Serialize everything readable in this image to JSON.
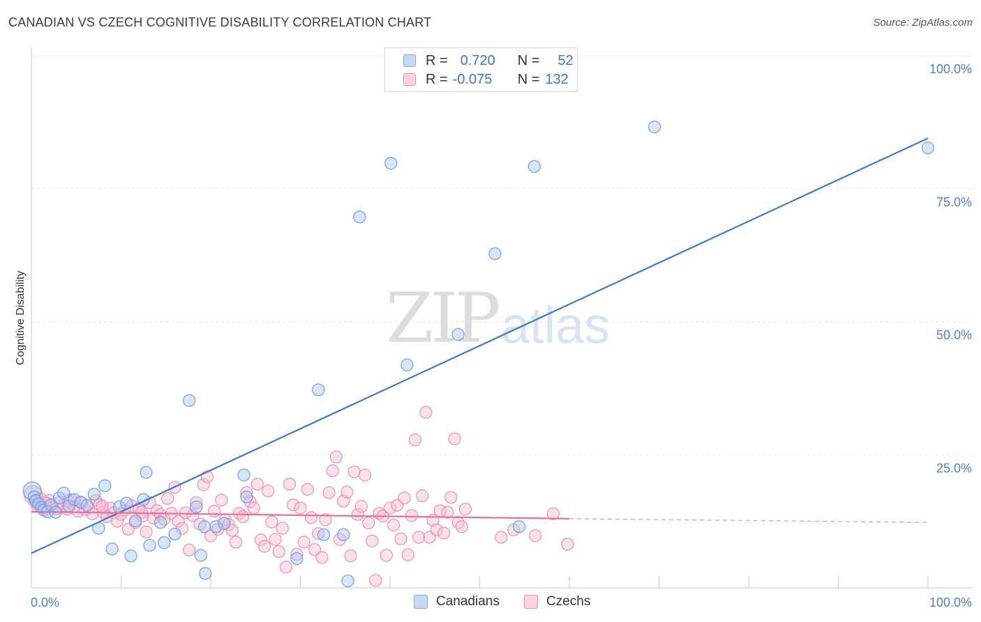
{
  "title": "CANADIAN VS CZECH COGNITIVE DISABILITY CORRELATION CHART",
  "source": "Source: ZipAtlas.com",
  "watermark": {
    "zip": "ZIP",
    "atlas": "atlas"
  },
  "legend": {
    "rows": [
      {
        "r_label": "R =",
        "r_value": "0.720",
        "n_label": "N =",
        "n_value": "52",
        "color": "#a9c8f2",
        "border": "#7aa8e8"
      },
      {
        "r_label": "R =",
        "r_value": "-0.075",
        "n_label": "N =",
        "n_value": "132",
        "color": "#f7bcd0",
        "border": "#ee8fb0"
      }
    ]
  },
  "bottom_legend": [
    {
      "label": "Canadians",
      "color": "#a9c8f2",
      "border": "#7aa8e8"
    },
    {
      "label": "Czechs",
      "color": "#f7bcd0",
      "border": "#ee8fb0"
    }
  ],
  "chart_data": {
    "type": "scatter",
    "title": "CANADIAN VS CZECH COGNITIVE DISABILITY CORRELATION CHART",
    "xlabel": "",
    "ylabel": "Cognitive Disability",
    "xlim": [
      0,
      100
    ],
    "ylim": [
      0,
      100
    ],
    "x_tick_labels": [
      "0.0%",
      "100.0%"
    ],
    "y_tick_labels": [
      "25.0%",
      "50.0%",
      "75.0%",
      "100.0%"
    ],
    "y_ticks": [
      25,
      50,
      75,
      100
    ],
    "grid": true,
    "legend_position": "top-center",
    "colors": {
      "canadians": "#3a78d4",
      "czechs": "#e8709a"
    },
    "series": [
      {
        "name": "Canadians",
        "trend": {
          "x": [
            0,
            100
          ],
          "y": [
            6.5,
            84.5
          ],
          "style": "solid"
        },
        "points": [
          [
            0.1,
            18.2
          ],
          [
            0.3,
            17.1
          ],
          [
            0.5,
            16.4
          ],
          [
            0.8,
            15.8
          ],
          [
            1.1,
            15.1
          ],
          [
            1.4,
            14.6
          ],
          [
            1.8,
            14.3
          ],
          [
            2.2,
            15.6
          ],
          [
            2.7,
            14.2
          ],
          [
            3.1,
            16.9
          ],
          [
            3.6,
            17.8
          ],
          [
            4.2,
            15.4
          ],
          [
            4.8,
            16.6
          ],
          [
            5.5,
            16.1
          ],
          [
            6.2,
            15.5
          ],
          [
            7.0,
            17.6
          ],
          [
            7.5,
            11.2
          ],
          [
            8.2,
            19.2
          ],
          [
            9.0,
            7.3
          ],
          [
            9.8,
            15.2
          ],
          [
            10.6,
            15.9
          ],
          [
            11.1,
            6.0
          ],
          [
            11.6,
            12.6
          ],
          [
            12.5,
            16.6
          ],
          [
            12.8,
            21.7
          ],
          [
            13.2,
            8.0
          ],
          [
            14.4,
            12.3
          ],
          [
            14.8,
            8.5
          ],
          [
            16.0,
            10.1
          ],
          [
            17.6,
            35.2
          ],
          [
            18.4,
            15.2
          ],
          [
            18.9,
            6.1
          ],
          [
            19.3,
            11.5
          ],
          [
            19.4,
            2.7
          ],
          [
            20.6,
            11.5
          ],
          [
            21.5,
            12.1
          ],
          [
            23.7,
            21.2
          ],
          [
            24.0,
            17.1
          ],
          [
            29.6,
            5.5
          ],
          [
            32.0,
            37.2
          ],
          [
            32.6,
            10.0
          ],
          [
            34.8,
            10.0
          ],
          [
            35.3,
            1.3
          ],
          [
            36.6,
            69.7
          ],
          [
            40.1,
            79.8
          ],
          [
            41.9,
            41.9
          ],
          [
            47.6,
            47.6
          ],
          [
            51.7,
            62.8
          ],
          [
            54.4,
            11.5
          ],
          [
            56.1,
            79.2
          ],
          [
            69.5,
            86.6
          ],
          [
            100,
            82.7
          ]
        ]
      },
      {
        "name": "Czechs",
        "trend": {
          "x": [
            0,
            60
          ],
          "y": [
            14.3,
            13.0
          ],
          "style": "solid",
          "dashed_to": [
            100,
            12.3
          ]
        },
        "points": [
          [
            0.2,
            17.5
          ],
          [
            0.4,
            16.2
          ],
          [
            0.7,
            15.4
          ],
          [
            1.0,
            16.8
          ],
          [
            1.3,
            15.0
          ],
          [
            1.7,
            15.9
          ],
          [
            2.0,
            16.4
          ],
          [
            2.4,
            15.2
          ],
          [
            2.8,
            14.9
          ],
          [
            3.2,
            16.1
          ],
          [
            3.6,
            15.5
          ],
          [
            4.0,
            14.8
          ],
          [
            4.4,
            16.6
          ],
          [
            4.8,
            15.3
          ],
          [
            5.2,
            14.4
          ],
          [
            5.6,
            16.0
          ],
          [
            6.0,
            14.7
          ],
          [
            6.4,
            15.1
          ],
          [
            6.8,
            13.9
          ],
          [
            7.2,
            16.4
          ],
          [
            7.6,
            15.6
          ],
          [
            8.0,
            14.2
          ],
          [
            8.4,
            13.4
          ],
          [
            8.8,
            15.0
          ],
          [
            9.2,
            14.1
          ],
          [
            9.6,
            12.5
          ],
          [
            10.0,
            13.8
          ],
          [
            10.4,
            14.6
          ],
          [
            10.8,
            11.0
          ],
          [
            11.2,
            15.4
          ],
          [
            11.6,
            12.3
          ],
          [
            12.0,
            14.9
          ],
          [
            12.4,
            13.5
          ],
          [
            12.8,
            10.5
          ],
          [
            13.2,
            16.0
          ],
          [
            13.6,
            13.1
          ],
          [
            14.0,
            14.5
          ],
          [
            14.4,
            13.8
          ],
          [
            14.8,
            12.9
          ],
          [
            15.2,
            16.8
          ],
          [
            15.6,
            14.0
          ],
          [
            16.0,
            18.9
          ],
          [
            16.4,
            12.5
          ],
          [
            16.8,
            11.2
          ],
          [
            17.2,
            14.1
          ],
          [
            17.6,
            7.1
          ],
          [
            18.0,
            13.6
          ],
          [
            18.4,
            16.0
          ],
          [
            18.8,
            12.0
          ],
          [
            19.2,
            19.4
          ],
          [
            19.6,
            20.9
          ],
          [
            20.0,
            9.8
          ],
          [
            20.4,
            14.4
          ],
          [
            20.8,
            11.0
          ],
          [
            21.2,
            16.5
          ],
          [
            21.6,
            12.8
          ],
          [
            22.0,
            11.9
          ],
          [
            22.4,
            10.8
          ],
          [
            22.8,
            8.6
          ],
          [
            23.2,
            14.0
          ],
          [
            23.6,
            13.4
          ],
          [
            24.0,
            17.9
          ],
          [
            24.4,
            16.2
          ],
          [
            24.8,
            15.0
          ],
          [
            25.2,
            19.5
          ],
          [
            25.6,
            9.0
          ],
          [
            26.0,
            7.8
          ],
          [
            26.4,
            18.2
          ],
          [
            26.8,
            12.4
          ],
          [
            27.2,
            9.1
          ],
          [
            27.6,
            6.8
          ],
          [
            28.0,
            11.2
          ],
          [
            28.4,
            3.9
          ],
          [
            28.8,
            19.5
          ],
          [
            29.2,
            15.6
          ],
          [
            29.6,
            6.3
          ],
          [
            30.0,
            15.0
          ],
          [
            30.4,
            8.6
          ],
          [
            30.8,
            18.5
          ],
          [
            31.2,
            13.2
          ],
          [
            31.6,
            7.2
          ],
          [
            32.0,
            10.2
          ],
          [
            32.4,
            5.7
          ],
          [
            32.8,
            12.8
          ],
          [
            33.2,
            17.9
          ],
          [
            33.6,
            22.0
          ],
          [
            34.0,
            24.6
          ],
          [
            34.4,
            9.1
          ],
          [
            34.8,
            16.3
          ],
          [
            35.2,
            18.0
          ],
          [
            35.6,
            6.0
          ],
          [
            36.0,
            21.8
          ],
          [
            36.4,
            13.8
          ],
          [
            36.8,
            15.3
          ],
          [
            37.2,
            21.2
          ],
          [
            37.6,
            12.2
          ],
          [
            38.0,
            8.8
          ],
          [
            38.4,
            1.4
          ],
          [
            38.8,
            14.0
          ],
          [
            39.2,
            13.5
          ],
          [
            39.6,
            6.1
          ],
          [
            40.0,
            15.0
          ],
          [
            40.4,
            11.8
          ],
          [
            40.8,
            15.5
          ],
          [
            41.2,
            9.2
          ],
          [
            41.6,
            16.9
          ],
          [
            42.0,
            6.2
          ],
          [
            42.4,
            13.6
          ],
          [
            42.8,
            27.8
          ],
          [
            43.2,
            9.5
          ],
          [
            43.6,
            17.3
          ],
          [
            44.0,
            33.0
          ],
          [
            44.4,
            9.5
          ],
          [
            44.8,
            12.7
          ],
          [
            45.2,
            10.9
          ],
          [
            45.6,
            14.5
          ],
          [
            46.0,
            10.3
          ],
          [
            46.4,
            14.2
          ],
          [
            46.8,
            17.0
          ],
          [
            47.2,
            28.0
          ],
          [
            47.6,
            12.3
          ],
          [
            48.0,
            11.5
          ],
          [
            48.4,
            14.8
          ],
          [
            52.4,
            9.5
          ],
          [
            53.8,
            10.9
          ],
          [
            56.2,
            9.8
          ],
          [
            58.2,
            13.9
          ],
          [
            59.8,
            8.2
          ],
          [
            1.5,
            16.0
          ],
          [
            4.1,
            16.3
          ],
          [
            7.9,
            15.3
          ],
          [
            12.3,
            14.2
          ]
        ]
      }
    ]
  }
}
